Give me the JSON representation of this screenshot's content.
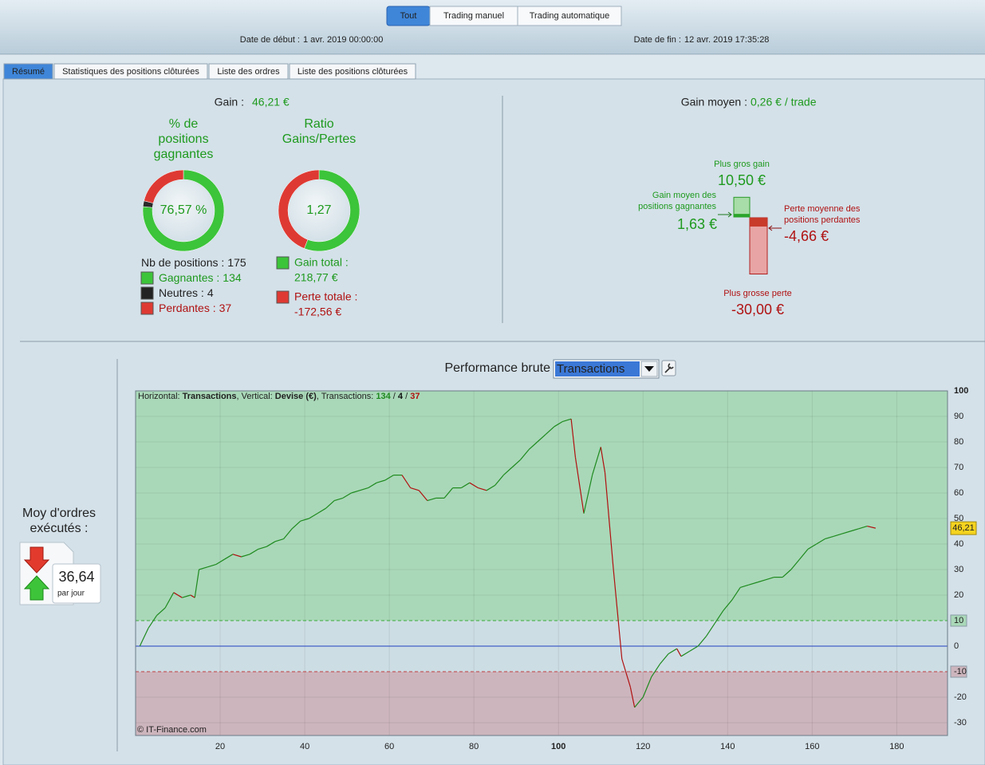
{
  "toolbar": {
    "buttons": [
      "Tout",
      "Trading manuel",
      "Trading automatique"
    ],
    "start_label": "Date de début :",
    "start": "1 avr. 2019 00:00:00",
    "end_label": "Date de fin :",
    "end": "12 avr. 2019 17:35:28"
  },
  "tabs": [
    "Résumé",
    "Statistiques des positions clôturées",
    "Liste des ordres",
    "Liste des positions clôturées"
  ],
  "summary": {
    "gain_label": "Gain :",
    "gain": "46,21 €",
    "win_title": [
      "% de",
      "positions",
      "gagnantes"
    ],
    "win_pct": {
      "value": 76.57,
      "label": "76,57 %"
    },
    "ratio_title": [
      "Ratio",
      "Gains/Pertes"
    ],
    "ratio": {
      "value": 1.27,
      "label": "1,27"
    },
    "positions_label": "Nb de positions :",
    "positions": 175,
    "winners_label": "Gagnantes :",
    "winners": 134,
    "neutral_label": "Neutres :",
    "neutral": 4,
    "losers_label": "Perdantes :",
    "losers": 37,
    "gain_total_label": "Gain total :",
    "gain_total": {
      "value": 218.77,
      "label": "218,77 €"
    },
    "loss_total_label": "Perte totale :",
    "loss_total": {
      "value": -172.56,
      "label": "-172,56 €"
    }
  },
  "average": {
    "label": "Gain moyen :",
    "value": "0,26 € / trade",
    "max_gain_label": "Plus gros gain",
    "max_gain": {
      "value": 10.5,
      "label": "10,50 €"
    },
    "avg_gain_label": [
      "Gain moyen des",
      "positions gagnantes"
    ],
    "avg_gain": {
      "value": 1.63,
      "label": "1,63 €"
    },
    "avg_loss_label": [
      "Perte moyenne des",
      "positions perdantes"
    ],
    "avg_loss": {
      "value": -4.66,
      "label": "-4,66 €"
    },
    "max_loss_label": "Plus grosse perte",
    "max_loss": {
      "value": -30,
      "label": "-30,00 €"
    }
  },
  "orders": {
    "label": [
      "Moy d'ordres",
      "exécutés :"
    ],
    "value": "36,64",
    "unit": "par jour"
  },
  "chart_data": {
    "type": "line",
    "title": "Performance brute",
    "selector": "Transactions",
    "info": [
      "Horizontal: ",
      "Transactions",
      ", Vertical: ",
      "Devise (€)",
      ", Transactions: "
    ],
    "sep": " / ",
    "watermark": "© IT-Finance.com",
    "x": [
      1,
      3,
      5,
      7,
      9,
      11,
      13,
      14,
      15,
      17,
      19,
      21,
      23,
      25,
      27,
      29,
      31,
      33,
      35,
      37,
      39,
      41,
      43,
      45,
      47,
      49,
      51,
      53,
      55,
      57,
      59,
      61,
      63,
      65,
      67,
      69,
      71,
      73,
      75,
      77,
      79,
      81,
      83,
      85,
      87,
      89,
      91,
      93,
      95,
      97,
      99,
      101,
      103,
      104,
      106,
      108,
      110,
      111,
      113,
      115,
      117,
      118,
      120,
      122,
      124,
      126,
      128,
      129,
      131,
      133,
      135,
      137,
      139,
      141,
      143,
      145,
      147,
      149,
      151,
      153,
      155,
      157,
      159,
      161,
      163,
      165,
      167,
      169,
      171,
      173,
      175
    ],
    "values": [
      0,
      7,
      12,
      15,
      21,
      19,
      20,
      19,
      30,
      31,
      32,
      34,
      36,
      35,
      36,
      38,
      39,
      41,
      42,
      46,
      49,
      50,
      52,
      54,
      57,
      58,
      60,
      61,
      62,
      64,
      65,
      67,
      67,
      62,
      61,
      57,
      58,
      58,
      62,
      62,
      64,
      62,
      61,
      63,
      67,
      70,
      73,
      77,
      80,
      83,
      86,
      88,
      89,
      74,
      52,
      67,
      78,
      68,
      30,
      -5,
      -16,
      -24,
      -20,
      -12,
      -7,
      -3,
      -1,
      -4,
      -2,
      0,
      4,
      9,
      14,
      18,
      23,
      24,
      25,
      26,
      27,
      27,
      30,
      34,
      38,
      40,
      42,
      43,
      44,
      45,
      46,
      47,
      46.21
    ],
    "last_label": "46,21",
    "up_color": "#1e8a1e",
    "down_color": "#b01010",
    "xlim": [
      0,
      192
    ],
    "xticks": [
      20,
      40,
      60,
      80,
      100,
      120,
      140,
      160,
      180
    ],
    "ylim": [
      -35,
      100
    ],
    "yticks": [
      -30,
      -20,
      -10,
      0,
      10,
      20,
      30,
      40,
      50,
      60,
      70,
      80,
      90,
      100
    ],
    "zones": {
      "upper": 10,
      "lower": -10
    },
    "grid": true
  }
}
